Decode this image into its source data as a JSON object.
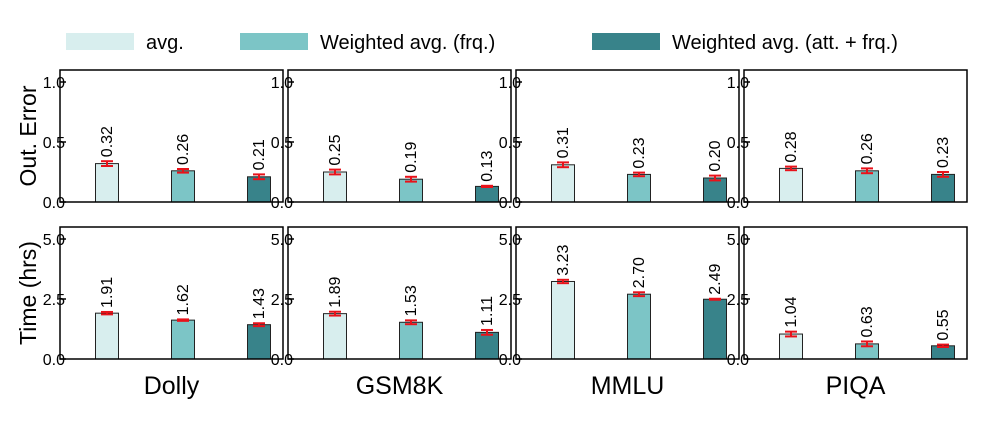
{
  "legend": [
    {
      "label": "avg.",
      "color": "#d8eeee"
    },
    {
      "label": "Weighted avg. (frq.)",
      "color": "#7cc5c6"
    },
    {
      "label": "Weighted avg. (att. + frq.)",
      "color": "#38838a"
    }
  ],
  "error_color": "#e8121a",
  "chart_data": {
    "type": "bar",
    "layout": "grid 2 rows x 4 columns, shared categories, error bars",
    "datasets": [
      "Dolly",
      "GSM8K",
      "MMLU",
      "PIQA"
    ],
    "series_names": [
      "avg.",
      "Weighted avg. (frq.)",
      "Weighted avg. (att. + frq.)"
    ],
    "rows": [
      {
        "ylabel": "Out. Error",
        "ylim": [
          0,
          1.1
        ],
        "yticks": [
          0.0,
          0.5,
          1.0
        ],
        "ytick_labels": [
          "0.0",
          "0.5",
          "1.0"
        ],
        "values": [
          [
            0.32,
            0.26,
            0.21
          ],
          [
            0.25,
            0.19,
            0.13
          ],
          [
            0.31,
            0.23,
            0.2
          ],
          [
            0.28,
            0.26,
            0.23
          ]
        ],
        "labels": [
          [
            "0.32",
            "0.26",
            "0.21"
          ],
          [
            "0.25",
            "0.19",
            "0.13"
          ],
          [
            "0.31",
            "0.23",
            "0.20"
          ],
          [
            "0.28",
            "0.26",
            "0.23"
          ]
        ],
        "errors": [
          [
            0.02,
            0.015,
            0.02
          ],
          [
            0.02,
            0.02,
            0.005
          ],
          [
            0.02,
            0.015,
            0.02
          ],
          [
            0.015,
            0.02,
            0.02
          ]
        ]
      },
      {
        "ylabel": "Time (hrs)",
        "ylim": [
          0,
          5.5
        ],
        "yticks": [
          0.0,
          2.5,
          5.0
        ],
        "ytick_labels": [
          "0.0",
          "2.5",
          "5.0"
        ],
        "values": [
          [
            1.91,
            1.62,
            1.43
          ],
          [
            1.89,
            1.53,
            1.11
          ],
          [
            3.23,
            2.7,
            2.49
          ],
          [
            1.04,
            0.63,
            0.55
          ]
        ],
        "labels": [
          [
            "1.91",
            "1.62",
            "1.43"
          ],
          [
            "1.89",
            "1.53",
            "1.11"
          ],
          [
            "3.23",
            "2.70",
            "2.49"
          ],
          [
            "1.04",
            "0.63",
            "0.55"
          ]
        ],
        "errors": [
          [
            0.05,
            0.03,
            0.06
          ],
          [
            0.08,
            0.08,
            0.1
          ],
          [
            0.07,
            0.08,
            0.02
          ],
          [
            0.1,
            0.1,
            0.05
          ]
        ]
      }
    ]
  }
}
